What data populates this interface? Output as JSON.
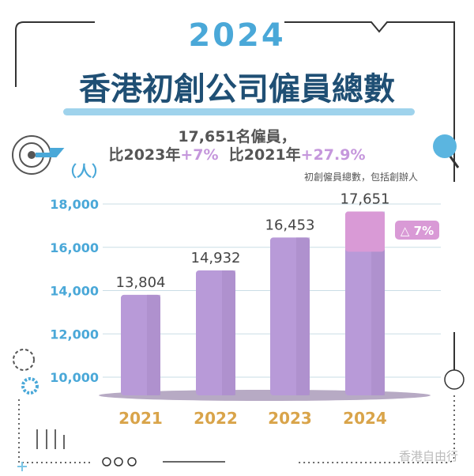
{
  "header": {
    "year": "2024",
    "title": "香港初創公司僱員總數"
  },
  "summary": {
    "line1": "17,651名僱員，",
    "vs2023_prefix": "比2023年",
    "vs2023_value": "+7%",
    "vs2021_prefix": "比2021年",
    "vs2021_value": "+27.9%"
  },
  "watermark": "香港自由行",
  "chart_data": {
    "type": "bar",
    "title": "香港初創公司僱員總數",
    "ylabel": "（人）",
    "note": "初創僱員總數，包括創辦人",
    "categories": [
      "2021",
      "2022",
      "2023",
      "2024"
    ],
    "values": [
      13804,
      14932,
      16453,
      17651
    ],
    "data_labels": [
      "13,804",
      "14,932",
      "16,453",
      "17,651"
    ],
    "yticks": [
      10000,
      12000,
      14000,
      16000,
      18000
    ],
    "ytick_labels": [
      "10,000",
      "12,000",
      "14,000",
      "16,000",
      "18,000"
    ],
    "ylim": [
      10000,
      18000
    ],
    "annotation": "△ 7%",
    "colors": {
      "bar": "#b89ad8",
      "bar_side": "#a88cc8",
      "delta": "#d99ad6",
      "axis": "#4aa8d8",
      "year": "#d9a44a",
      "grid": "#c9dde6"
    }
  }
}
